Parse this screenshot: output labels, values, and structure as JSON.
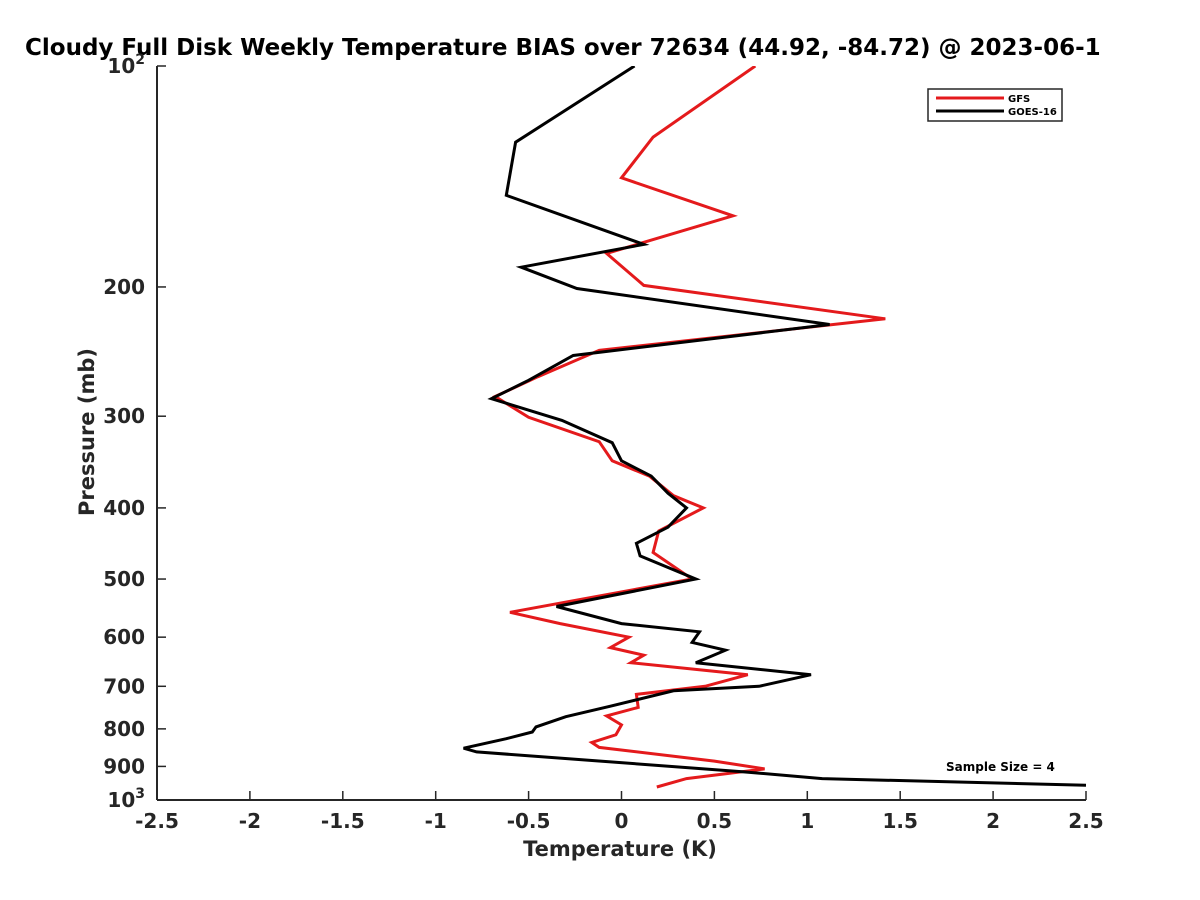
{
  "chart_data": {
    "type": "line",
    "title": "Cloudy Full Disk Weekly Temperature BIAS over 72634 (44.92, -84.72) @ 2023-06-1",
    "xlabel": "Temperature (K)",
    "ylabel": "Pressure (mb)",
    "xlim": [
      -2.5,
      2.5
    ],
    "ylim": [
      100,
      1000
    ],
    "y_scale": "log",
    "y_reversed": true,
    "grid": false,
    "legend_position": "top-right",
    "x_ticks": [
      "-2.5",
      "-2",
      "-1.5",
      "-1",
      "-0.5",
      "0",
      "0.5",
      "1",
      "1.5",
      "2",
      "2.5"
    ],
    "x_tick_values": [
      -2.5,
      -2,
      -1.5,
      -1,
      -0.5,
      0,
      0.5,
      1,
      1.5,
      2,
      2.5
    ],
    "y_ticks": [
      {
        "value": 100,
        "base": "10",
        "exp": "2"
      },
      {
        "value": 200,
        "base": "200",
        "exp": ""
      },
      {
        "value": 300,
        "base": "300",
        "exp": ""
      },
      {
        "value": 400,
        "base": "400",
        "exp": ""
      },
      {
        "value": 500,
        "base": "500",
        "exp": ""
      },
      {
        "value": 600,
        "base": "600",
        "exp": ""
      },
      {
        "value": 700,
        "base": "700",
        "exp": ""
      },
      {
        "value": 800,
        "base": "800",
        "exp": ""
      },
      {
        "value": 900,
        "base": "900",
        "exp": ""
      },
      {
        "value": 1000,
        "base": "10",
        "exp": "3"
      }
    ],
    "annotation": "Sample Size = 4",
    "series": [
      {
        "name": "GFS",
        "color": "#e41a1c",
        "points": [
          [
            0.72,
            100
          ],
          [
            0.17,
            125
          ],
          [
            0.0,
            142
          ],
          [
            0.6,
            160
          ],
          [
            -0.08,
            180
          ],
          [
            0.12,
            199
          ],
          [
            1.42,
            221
          ],
          [
            -0.12,
            244
          ],
          [
            -0.45,
            265
          ],
          [
            -0.68,
            282
          ],
          [
            -0.5,
            301
          ],
          [
            -0.12,
            325
          ],
          [
            -0.05,
            345
          ],
          [
            0.15,
            362
          ],
          [
            0.28,
            385
          ],
          [
            0.44,
            400
          ],
          [
            0.2,
            430
          ],
          [
            0.17,
            460
          ],
          [
            0.38,
            500
          ],
          [
            -0.6,
            555
          ],
          [
            -0.33,
            575
          ],
          [
            0.04,
            600
          ],
          [
            -0.06,
            620
          ],
          [
            0.12,
            635
          ],
          [
            0.05,
            650
          ],
          [
            0.68,
            675
          ],
          [
            0.45,
            700
          ],
          [
            0.08,
            718
          ],
          [
            0.09,
            748
          ],
          [
            -0.08,
            768
          ],
          [
            0.0,
            790
          ],
          [
            -0.03,
            815
          ],
          [
            -0.16,
            835
          ],
          [
            -0.12,
            848
          ],
          [
            0.5,
            885
          ],
          [
            0.77,
            907
          ],
          [
            0.35,
            935
          ],
          [
            0.19,
            960
          ]
        ]
      },
      {
        "name": "GOES-16",
        "color": "#000000",
        "points": [
          [
            0.07,
            100
          ],
          [
            -0.57,
            127
          ],
          [
            -0.62,
            150
          ],
          [
            0.12,
            175
          ],
          [
            -0.54,
            188
          ],
          [
            -0.24,
            201
          ],
          [
            1.12,
            225
          ],
          [
            -0.26,
            248
          ],
          [
            -0.5,
            268
          ],
          [
            -0.7,
            284
          ],
          [
            -0.32,
            304
          ],
          [
            -0.05,
            326
          ],
          [
            0.0,
            345
          ],
          [
            0.16,
            362
          ],
          [
            0.25,
            382
          ],
          [
            0.35,
            400
          ],
          [
            0.25,
            425
          ],
          [
            0.08,
            447
          ],
          [
            0.1,
            465
          ],
          [
            0.4,
            500
          ],
          [
            -0.35,
            545
          ],
          [
            0.0,
            575
          ],
          [
            0.42,
            590
          ],
          [
            0.38,
            610
          ],
          [
            0.56,
            625
          ],
          [
            0.4,
            650
          ],
          [
            1.02,
            675
          ],
          [
            0.74,
            700
          ],
          [
            0.28,
            710
          ],
          [
            -0.06,
            745
          ],
          [
            -0.3,
            770
          ],
          [
            -0.46,
            795
          ],
          [
            -0.48,
            808
          ],
          [
            -0.62,
            825
          ],
          [
            -0.85,
            850
          ],
          [
            -0.78,
            860
          ],
          [
            0.65,
            915
          ],
          [
            1.08,
            935
          ],
          [
            2.5,
            955
          ]
        ]
      }
    ]
  }
}
